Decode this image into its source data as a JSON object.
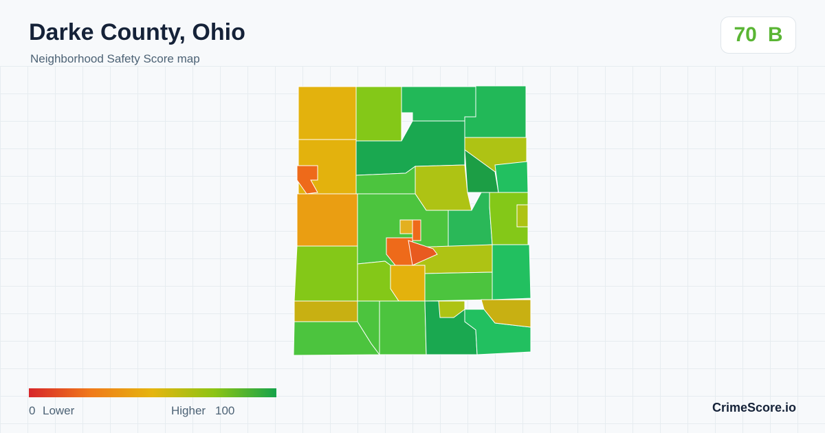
{
  "header": {
    "title": "Darke County, Ohio",
    "subtitle": "Neighborhood Safety Score map"
  },
  "badge": {
    "score": 70,
    "grade": "B"
  },
  "legend": {
    "min": 0,
    "min_label": "Lower",
    "max_label": "Higher",
    "max": 100
  },
  "brand": "CrimeScore.io"
}
